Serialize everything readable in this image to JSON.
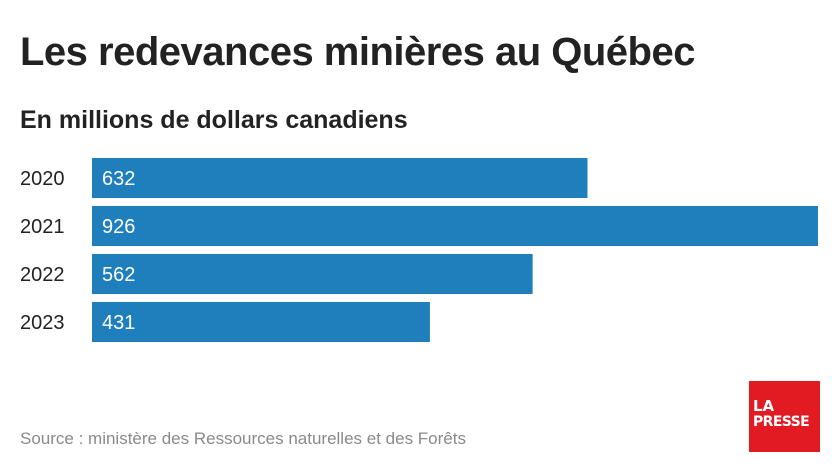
{
  "chart_data": {
    "type": "bar",
    "orientation": "horizontal",
    "title": "Les redevances minières au Québec",
    "subtitle": "En millions de dollars canadiens",
    "categories": [
      "2020",
      "2021",
      "2022",
      "2023"
    ],
    "values": [
      632,
      926,
      562,
      431
    ],
    "data_labels": [
      "632",
      "926",
      "562",
      "431"
    ],
    "xlim": [
      0,
      926
    ],
    "grid": false,
    "legend": "none",
    "bar_color": "#1f7fbd",
    "label_color": "#ffffff"
  },
  "footer": {
    "source": "Source : ministère des Ressources naturelles et des Forêts",
    "logo_line1": "LA",
    "logo_line2": "PRESSE",
    "logo_color": "#e21b23"
  }
}
